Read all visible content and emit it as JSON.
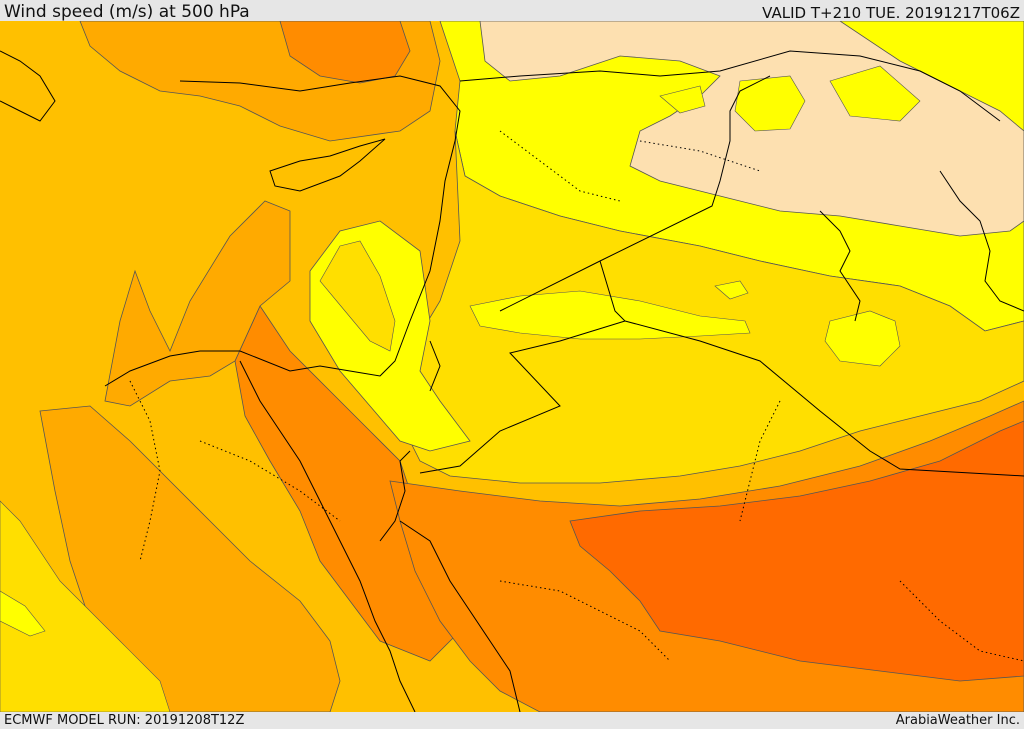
{
  "header": {
    "title": "Wind speed (m/s) at 500 hPa",
    "valid": "VALID T+210 TUE. 20191217T06Z"
  },
  "footer": {
    "model_run": "ECMWF MODEL RUN: 20191208T12Z",
    "credit": "ArabiaWeather Inc."
  },
  "map": {
    "variable": "wind speed",
    "level": "500 hPa",
    "colors": {
      "lightest": "#fde0b0",
      "yellow": "#ffff00",
      "gold": "#ffdf00",
      "amber": "#ffc000",
      "orange_light": "#ffaa00",
      "orange": "#ff8c00",
      "orange_dark": "#ff6a00",
      "contour": "#555555",
      "coast": "#000000"
    }
  }
}
